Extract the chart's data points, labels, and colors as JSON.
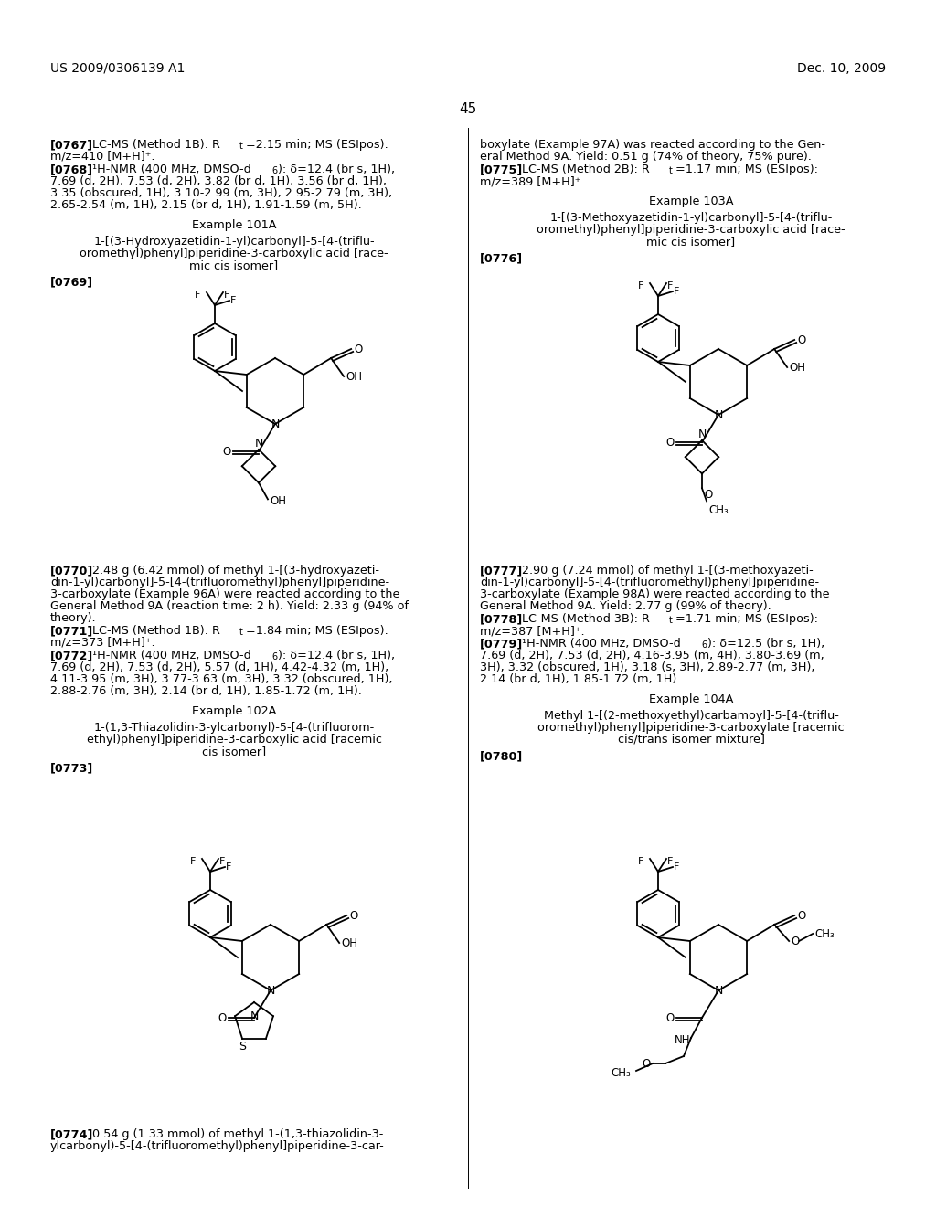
{
  "background": "#ffffff",
  "header_left": "US 2009/0306139 A1",
  "header_right": "Dec. 10, 2009",
  "page_num": "45"
}
